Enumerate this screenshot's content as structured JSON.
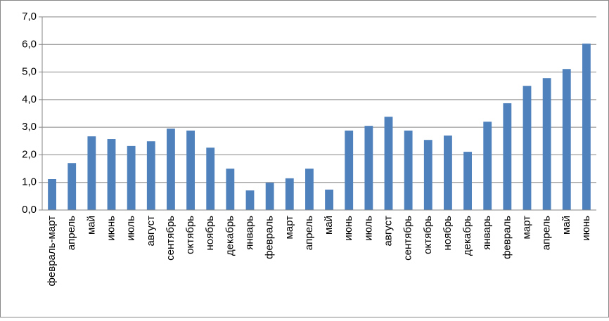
{
  "chart_data": {
    "type": "bar",
    "categories": [
      "февраль-март",
      "апрель",
      "май",
      "июнь",
      "июль",
      "август",
      "сентябрь",
      "октябрь",
      "ноябрь",
      "декабрь",
      "январь",
      "февраль",
      "март",
      "апрель",
      "май",
      "июнь",
      "июль",
      "август",
      "сентябрь",
      "октябрь",
      "ноябрь",
      "декабрь",
      "январь",
      "февраль",
      "март",
      "апрель",
      "май",
      "июнь"
    ],
    "values": [
      1.12,
      1.7,
      2.67,
      2.57,
      2.32,
      2.49,
      2.95,
      2.88,
      2.26,
      1.5,
      0.71,
      0.99,
      1.15,
      1.5,
      0.74,
      2.88,
      3.05,
      3.38,
      2.88,
      2.54,
      2.7,
      2.11,
      3.2,
      3.87,
      4.5,
      4.78,
      5.11,
      6.03
    ],
    "color": "#4f81bd",
    "ylim": [
      0,
      7
    ],
    "yticks": [
      {
        "value": 0,
        "label": "0,0"
      },
      {
        "value": 1,
        "label": "1,0"
      },
      {
        "value": 2,
        "label": "2,0"
      },
      {
        "value": 3,
        "label": "3,0"
      },
      {
        "value": 4,
        "label": "4,0"
      },
      {
        "value": 5,
        "label": "5,0"
      },
      {
        "value": 6,
        "label": "6,0"
      },
      {
        "value": 7,
        "label": "7,0"
      }
    ],
    "grid": true
  }
}
